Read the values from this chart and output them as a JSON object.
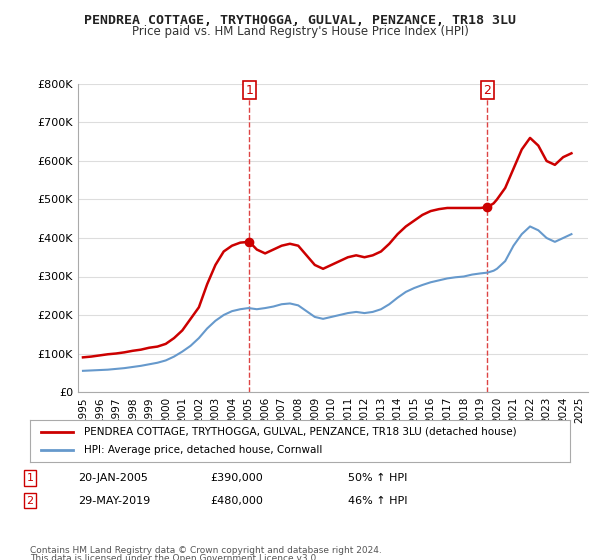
{
  "title": "PENDREA COTTAGE, TRYTHOGGA, GULVAL, PENZANCE, TR18 3LU",
  "subtitle": "Price paid vs. HM Land Registry's House Price Index (HPI)",
  "legend_line1": "PENDREA COTTAGE, TRYTHOGGA, GULVAL, PENZANCE, TR18 3LU (detached house)",
  "legend_line2": "HPI: Average price, detached house, Cornwall",
  "marker1_label": "1",
  "marker1_date": "20-JAN-2005",
  "marker1_price": "£390,000",
  "marker1_hpi": "50% ↑ HPI",
  "marker2_label": "2",
  "marker2_date": "29-MAY-2019",
  "marker2_price": "£480,000",
  "marker2_hpi": "46% ↑ HPI",
  "footer1": "Contains HM Land Registry data © Crown copyright and database right 2024.",
  "footer2": "This data is licensed under the Open Government Licence v3.0.",
  "ylim": [
    0,
    800000
  ],
  "xlim_start": 1995.0,
  "xlim_end": 2025.5,
  "red_color": "#cc0000",
  "blue_color": "#6699cc",
  "dashed_color": "#dd4444",
  "property_years": [
    1995.0,
    1995.5,
    1996.0,
    1996.5,
    1997.0,
    1997.5,
    1998.0,
    1998.5,
    1999.0,
    1999.5,
    2000.0,
    2000.5,
    2001.0,
    2001.5,
    2002.0,
    2002.5,
    2003.0,
    2003.5,
    2004.0,
    2004.5,
    2005.05,
    2005.5,
    2006.0,
    2006.5,
    2007.0,
    2007.5,
    2008.0,
    2008.5,
    2009.0,
    2009.5,
    2010.0,
    2010.5,
    2011.0,
    2011.5,
    2012.0,
    2012.5,
    2013.0,
    2013.5,
    2014.0,
    2014.5,
    2015.0,
    2015.5,
    2016.0,
    2016.5,
    2017.0,
    2017.5,
    2018.0,
    2018.5,
    2019.0,
    2019.42,
    2019.8,
    2020.0,
    2020.5,
    2021.0,
    2021.5,
    2022.0,
    2022.5,
    2023.0,
    2023.5,
    2024.0,
    2024.5
  ],
  "property_values": [
    90000,
    92000,
    95000,
    98000,
    100000,
    103000,
    107000,
    110000,
    115000,
    118000,
    125000,
    140000,
    160000,
    190000,
    220000,
    280000,
    330000,
    365000,
    380000,
    388000,
    390000,
    370000,
    360000,
    370000,
    380000,
    385000,
    380000,
    355000,
    330000,
    320000,
    330000,
    340000,
    350000,
    355000,
    350000,
    355000,
    365000,
    385000,
    410000,
    430000,
    445000,
    460000,
    470000,
    475000,
    478000,
    478000,
    478000,
    478000,
    478000,
    480000,
    490000,
    500000,
    530000,
    580000,
    630000,
    660000,
    640000,
    600000,
    590000,
    610000,
    620000
  ],
  "hpi_years": [
    1995.0,
    1995.5,
    1996.0,
    1996.5,
    1997.0,
    1997.5,
    1998.0,
    1998.5,
    1999.0,
    1999.5,
    2000.0,
    2000.5,
    2001.0,
    2001.5,
    2002.0,
    2002.5,
    2003.0,
    2003.5,
    2004.0,
    2004.5,
    2005.0,
    2005.5,
    2006.0,
    2006.5,
    2007.0,
    2007.5,
    2008.0,
    2008.5,
    2009.0,
    2009.5,
    2010.0,
    2010.5,
    2011.0,
    2011.5,
    2012.0,
    2012.5,
    2013.0,
    2013.5,
    2014.0,
    2014.5,
    2015.0,
    2015.5,
    2016.0,
    2016.5,
    2017.0,
    2017.5,
    2018.0,
    2018.5,
    2019.0,
    2019.42,
    2019.8,
    2020.0,
    2020.5,
    2021.0,
    2021.5,
    2022.0,
    2022.5,
    2023.0,
    2023.5,
    2024.0,
    2024.5
  ],
  "hpi_values": [
    55000,
    56000,
    57000,
    58000,
    60000,
    62000,
    65000,
    68000,
    72000,
    76000,
    82000,
    92000,
    105000,
    120000,
    140000,
    165000,
    185000,
    200000,
    210000,
    215000,
    218000,
    215000,
    218000,
    222000,
    228000,
    230000,
    225000,
    210000,
    195000,
    190000,
    195000,
    200000,
    205000,
    208000,
    205000,
    208000,
    215000,
    228000,
    245000,
    260000,
    270000,
    278000,
    285000,
    290000,
    295000,
    298000,
    300000,
    305000,
    308000,
    310000,
    315000,
    320000,
    340000,
    380000,
    410000,
    430000,
    420000,
    400000,
    390000,
    400000,
    410000
  ],
  "marker1_x": 2005.05,
  "marker1_y": 390000,
  "marker2_x": 2019.42,
  "marker2_y": 480000,
  "xticks": [
    1995,
    1996,
    1997,
    1998,
    1999,
    2000,
    2001,
    2002,
    2003,
    2004,
    2005,
    2006,
    2007,
    2008,
    2009,
    2010,
    2011,
    2012,
    2013,
    2014,
    2015,
    2016,
    2017,
    2018,
    2019,
    2020,
    2021,
    2022,
    2023,
    2024,
    2025
  ],
  "background_color": "#ffffff",
  "grid_color": "#dddddd"
}
